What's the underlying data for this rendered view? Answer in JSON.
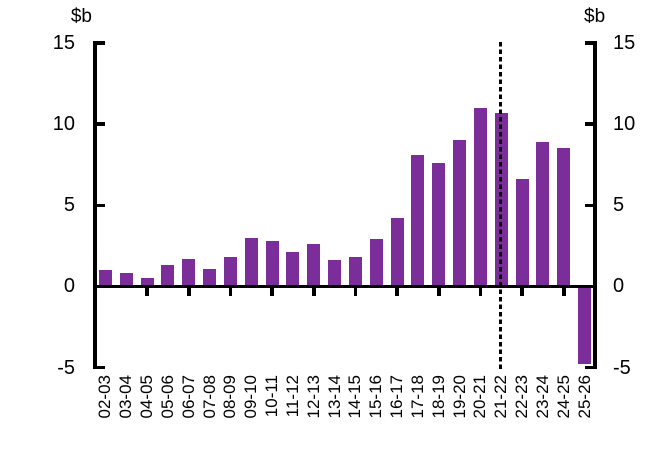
{
  "chart_data": {
    "type": "bar",
    "title": "",
    "categories": [
      "02-03",
      "03-04",
      "04-05",
      "05-06",
      "06-07",
      "07-08",
      "08-09",
      "09-10",
      "10-11",
      "11-12",
      "12-13",
      "13-14",
      "14-15",
      "15-16",
      "16-17",
      "17-18",
      "18-19",
      "19-20",
      "20-21",
      "21-22",
      "22-23",
      "23-24",
      "24-25",
      "25-26"
    ],
    "values": [
      1.0,
      0.8,
      0.5,
      1.3,
      1.7,
      1.1,
      1.8,
      3.0,
      2.8,
      2.1,
      2.6,
      1.6,
      1.8,
      2.9,
      4.2,
      8.1,
      7.6,
      9.0,
      11.0,
      10.7,
      6.6,
      8.9,
      8.5,
      -4.8
    ],
    "unit_label_left": "$b",
    "unit_label_right": "$b",
    "ylim": [
      -5,
      15
    ],
    "y_ticks": [
      15,
      10,
      5,
      0,
      -5
    ],
    "x_axis_tick_categories": [
      "04-05",
      "06-07",
      "08-09",
      "10-11",
      "12-13",
      "14-15",
      "16-17",
      "18-19",
      "20-21",
      "22-23",
      "24-25"
    ],
    "dotted_line_at_category": "21-22",
    "bar_color": "#7B2D9A",
    "axis_color": "#000000",
    "grid": false,
    "legend": "none"
  }
}
